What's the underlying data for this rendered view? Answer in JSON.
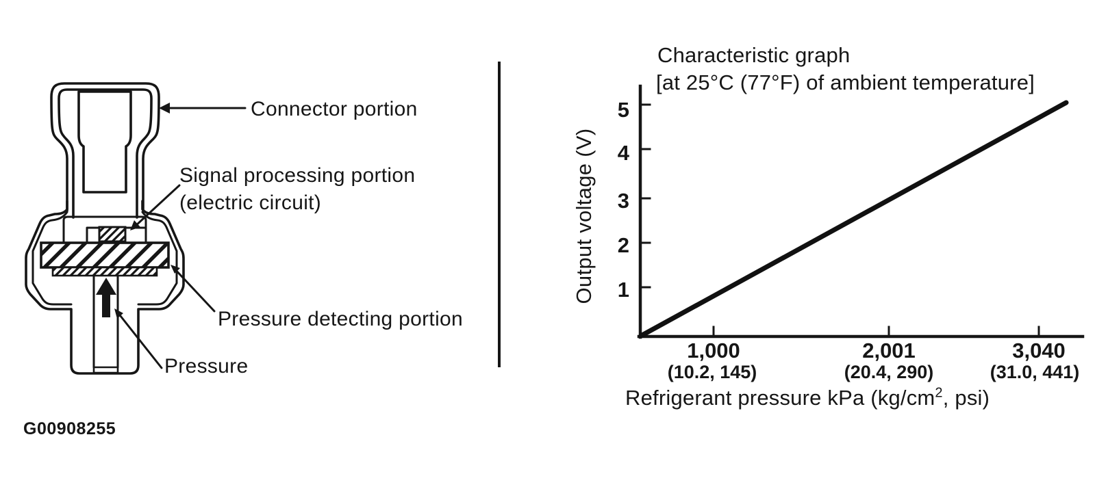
{
  "figure": {
    "id": "G00908255"
  },
  "sensor_diagram": {
    "labels": {
      "connector": "Connector portion",
      "signal_processing_line1": "Signal processing portion",
      "signal_processing_line2": "(electric circuit)",
      "pressure_detecting": "Pressure detecting portion",
      "pressure": "Pressure"
    }
  },
  "chart": {
    "title_line1": "Characteristic graph",
    "title_line2": "[at 25°C (77°F) of ambient temperature]",
    "y_axis_label": "Output voltage (V)",
    "y_ticks": [
      "5",
      "4",
      "3",
      "2",
      "1"
    ],
    "x_ticks": [
      {
        "kpa": "1,000",
        "alt": "(10.2, 145)"
      },
      {
        "kpa": "2,001",
        "alt": "(20.4, 290)"
      },
      {
        "kpa": "3,040",
        "alt": "(31.0, 441)"
      }
    ],
    "x_axis_label_pre": "Refrigerant pressure kPa (kg/cm",
    "x_axis_label_sup": "2",
    "x_axis_label_post": ", psi)"
  },
  "chart_data": {
    "type": "line",
    "title": "Characteristic graph [at 25°C (77°F) of ambient temperature]",
    "xlabel": "Refrigerant pressure kPa (kg/cm², psi)",
    "ylabel": "Output voltage (V)",
    "x_tick_values_kpa": [
      1000,
      2001,
      3040
    ],
    "x_tick_alt_labels_kgcm2_psi": [
      "(10.2, 145)",
      "(20.4, 290)",
      "(31.0, 441)"
    ],
    "y_tick_values": [
      1,
      2,
      3,
      4,
      5
    ],
    "xlim": [
      0,
      3400
    ],
    "ylim": [
      0,
      5.3
    ],
    "grid": false,
    "legend": "none",
    "series": [
      {
        "name": "Output voltage vs refrigerant pressure",
        "points": [
          [
            0,
            0.0
          ],
          [
            3400,
            5.1
          ]
        ]
      }
    ]
  }
}
